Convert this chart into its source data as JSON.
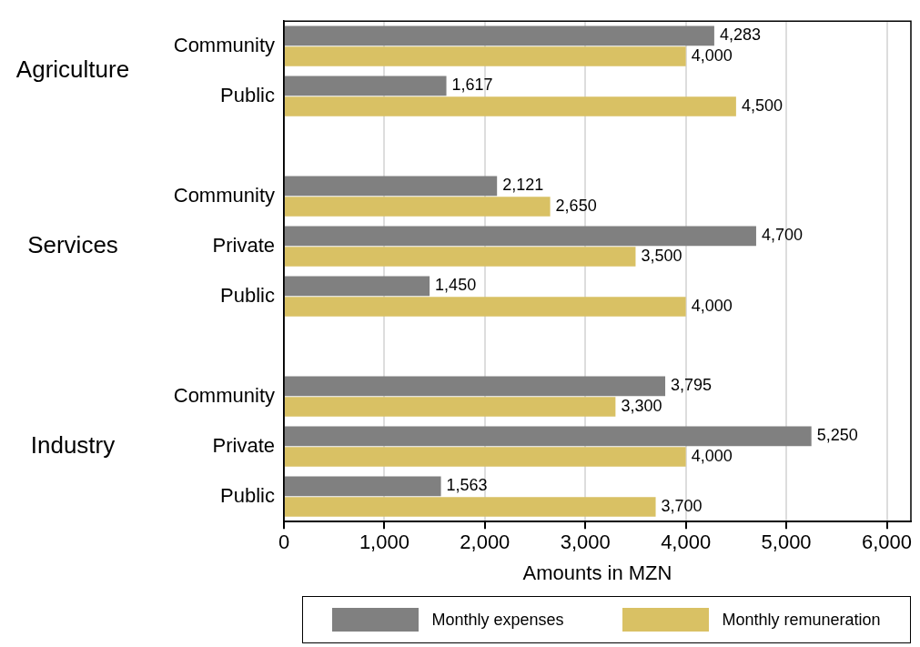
{
  "chart_data": {
    "type": "bar",
    "orientation": "horizontal",
    "categories": [
      "Community",
      "Public",
      null,
      "Community",
      "Private",
      "Public",
      null,
      "Community",
      "Private",
      "Public"
    ],
    "series": [
      {
        "name": "Monthly expenses",
        "color": "#808080",
        "values": [
          4283,
          1617,
          null,
          2121,
          4700,
          1450,
          null,
          3795,
          5250,
          1563
        ],
        "value_labels": [
          "4,283",
          "1,617",
          null,
          "2,121",
          "4,700",
          "1,450",
          null,
          "3,795",
          "5,250",
          "1,563"
        ]
      },
      {
        "name": "Monthly remuneration",
        "color": "#d9c164",
        "values": [
          4000,
          4500,
          null,
          2650,
          3500,
          4000,
          null,
          3300,
          4000,
          3700
        ],
        "value_labels": [
          "4,000",
          "4,500",
          null,
          "2,650",
          "3,500",
          "4,000",
          null,
          "3,300",
          "4,000",
          "3,700"
        ]
      }
    ],
    "xlabel": "Amounts in MZN",
    "xlim": [
      0,
      6240
    ],
    "xticks": [
      0,
      {
        "value": 1000,
        "label": "1,000"
      },
      {
        "value": 2000,
        "label": "2,000"
      },
      {
        "value": 3000,
        "label": "3,000"
      },
      {
        "value": 4000,
        "label": "4,000"
      },
      {
        "value": 5000,
        "label": "5,000"
      },
      {
        "value": 6000,
        "label": "6,000"
      }
    ],
    "annotations": [
      "Agriculture",
      "Services",
      "Industry"
    ],
    "grid": "x",
    "legend": "bottom"
  }
}
